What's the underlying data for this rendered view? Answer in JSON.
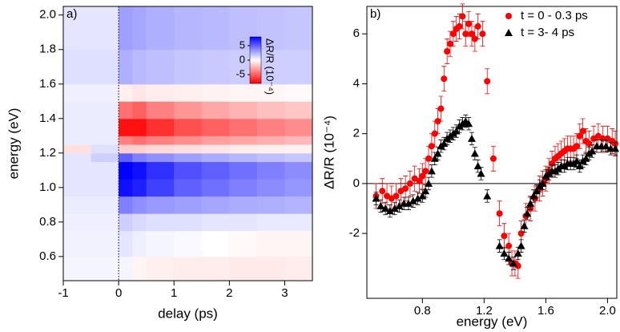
{
  "chart_data": [
    {
      "type": "heatmap",
      "panel_label": "a)",
      "xlabel": "delay (ps)",
      "ylabel": "energy (eV)",
      "xlim": [
        -1.0,
        3.5
      ],
      "ylim": [
        0.46,
        2.05
      ],
      "xticks": [
        -1,
        0,
        1,
        2,
        3
      ],
      "yticks": [
        0.6,
        0.8,
        {
          "value": 1.0,
          "label": "1.0"
        },
        1.2,
        1.4,
        1.6,
        1.8,
        {
          "value": 2.0,
          "label": "2.0"
        }
      ],
      "x_edges": [
        -1.0,
        -0.5,
        0,
        0.25,
        0.5,
        1.0,
        1.5,
        2.0,
        2.5,
        3.0,
        3.5
      ],
      "y_edges": [
        0.46,
        0.6,
        0.75,
        0.85,
        0.95,
        1.05,
        1.15,
        1.2,
        1.25,
        1.3,
        1.4,
        1.5,
        1.6,
        1.8,
        2.05
      ],
      "values": [
        [
          0.3,
          0.3,
          0.3,
          -0.3,
          -0.5,
          -0.6,
          -0.6,
          -0.7,
          -0.7,
          -0.6
        ],
        [
          0.4,
          0.4,
          0.8,
          0.5,
          0.3,
          0.2,
          0,
          -0.2,
          -0.3,
          -0.3
        ],
        [
          0.5,
          0.5,
          1.5,
          1.2,
          1.0,
          1.0,
          0.8,
          0.8,
          0.7,
          0.7
        ],
        [
          0.6,
          0.6,
          4.0,
          3.5,
          3.2,
          3.0,
          2.8,
          2.6,
          2.5,
          2.4
        ],
        [
          0.8,
          0.8,
          7.5,
          7.0,
          6.0,
          5.0,
          4.5,
          4.0,
          3.6,
          3.3
        ],
        [
          0.8,
          0.8,
          8.0,
          7.5,
          6.5,
          5.5,
          5.0,
          4.5,
          4.0,
          3.6
        ],
        [
          0.8,
          1.5,
          5.0,
          4.0,
          3.5,
          3.0,
          2.6,
          2.3,
          2.0,
          1.8
        ],
        [
          -1.0,
          1.0,
          -1.5,
          -1.5,
          -1.2,
          -1.0,
          -0.8,
          -0.6,
          -0.5,
          -0.4
        ],
        [
          0.6,
          0.6,
          -4.0,
          -4.5,
          -4.0,
          -3.5,
          -3.0,
          -2.8,
          -2.5,
          -2.2
        ],
        [
          0.6,
          0.6,
          -7.5,
          -7.5,
          -6.5,
          -5.5,
          -5.0,
          -4.5,
          -4.0,
          -3.6
        ],
        [
          0.6,
          0.6,
          -4.5,
          -5.0,
          -4.0,
          -3.3,
          -2.8,
          -2.4,
          -2.0,
          -1.8
        ],
        [
          0.5,
          0.5,
          -0.5,
          -0.8,
          -0.6,
          -0.5,
          -0.4,
          -0.3,
          -0.3,
          -0.2
        ],
        [
          1.0,
          1.0,
          2.5,
          2.2,
          2.0,
          1.8,
          1.7,
          1.6,
          1.5,
          1.5
        ],
        [
          0.8,
          0.8,
          3.0,
          2.8,
          2.5,
          2.3,
          2.2,
          2.0,
          1.9,
          1.8
        ]
      ],
      "zlim": [
        -8,
        8
      ],
      "zticks": [
        5,
        0,
        -5
      ],
      "colorbar_label": "ΔR/R (10⁻⁴)",
      "colors": {
        "low": "#ff0000",
        "mid": "#ffffff",
        "high": "#0000ff"
      },
      "vline": 0
    },
    {
      "type": "scatter",
      "panel_label": "b)",
      "xlabel": "energy (eV)",
      "ylabel": "ΔR/R (10⁻⁴)",
      "xlim": [
        0.44,
        2.06
      ],
      "ylim": [
        -4.6,
        7.1
      ],
      "xticks": [
        0.8,
        1.2,
        1.6,
        {
          "value": 2.0,
          "label": "2.0"
        }
      ],
      "yticks": [
        -2,
        0,
        2,
        4,
        6
      ],
      "hline": 0,
      "legend": "upper right",
      "series": [
        {
          "name": "t = 0 - 0.3 ps",
          "color": "#ff0000",
          "marker": "circle",
          "x": [
            0.5,
            0.54,
            0.57,
            0.6,
            0.63,
            0.66,
            0.69,
            0.72,
            0.75,
            0.78,
            0.8,
            0.82,
            0.84,
            0.86,
            0.88,
            0.9,
            0.92,
            0.94,
            0.96,
            0.98,
            1.0,
            1.02,
            1.04,
            1.06,
            1.08,
            1.1,
            1.12,
            1.14,
            1.16,
            1.19,
            1.22,
            1.26,
            1.3,
            1.33,
            1.36,
            1.38,
            1.4,
            1.42,
            1.44,
            1.47,
            1.5,
            1.53,
            1.56,
            1.58,
            1.6,
            1.62,
            1.64,
            1.66,
            1.68,
            1.7,
            1.72,
            1.74,
            1.76,
            1.78,
            1.8,
            1.82,
            1.84,
            1.86,
            1.88,
            1.91,
            1.94,
            1.97,
            2.0,
            2.03,
            2.05
          ],
          "values": [
            -0.5,
            -0.3,
            -0.5,
            -0.6,
            -0.5,
            -0.3,
            -0.2,
            0,
            0.2,
            0.1,
            0.3,
            0.5,
            1.0,
            1.5,
            2.0,
            2.5,
            3.0,
            4.2,
            5.3,
            5.6,
            6.0,
            6.2,
            6.3,
            6.7,
            6.0,
            6.4,
            6.0,
            5.8,
            6.3,
            6.0,
            4.1,
            1.0,
            -1.2,
            -2.1,
            -2.5,
            -3.2,
            -3.2,
            -3.3,
            -2.0,
            -1.3,
            -1.0,
            -0.6,
            -0.2,
            0,
            0.2,
            0.5,
            0.8,
            1.0,
            1.1,
            1.2,
            1.3,
            1.4,
            1.4,
            1.4,
            1.5,
            1.9,
            2.1,
            1.7,
            1.6,
            1.8,
            1.9,
            1.8,
            1.8,
            1.7,
            1.6
          ],
          "errors": [
            0.5,
            0.5,
            0.5,
            0.5,
            0.5,
            0.5,
            0.5,
            0.5,
            0.5,
            0.5,
            0.5,
            0.5,
            0.5,
            0.5,
            0.5,
            0.5,
            0.5,
            0.5,
            0.5,
            0.5,
            0.5,
            0.5,
            0.5,
            0.5,
            0.5,
            0.5,
            0.5,
            0.5,
            0.5,
            0.5,
            0.5,
            0.5,
            0.5,
            0.5,
            0.5,
            0.5,
            0.5,
            0.5,
            0.5,
            0.5,
            0.5,
            0.5,
            0.5,
            0.5,
            0.5,
            0.5,
            0.5,
            0.5,
            0.5,
            0.5,
            0.5,
            0.5,
            0.5,
            0.5,
            0.5,
            0.5,
            0.5,
            0.5,
            0.5,
            0.5,
            0.5,
            0.5,
            0.5,
            0.5,
            0.5
          ]
        },
        {
          "name": "t = 3- 4 ps",
          "color": "#000000",
          "marker": "triangle",
          "x": [
            0.5,
            0.53,
            0.56,
            0.59,
            0.62,
            0.65,
            0.68,
            0.71,
            0.74,
            0.77,
            0.8,
            0.82,
            0.84,
            0.86,
            0.88,
            0.9,
            0.92,
            0.94,
            0.96,
            0.98,
            1.0,
            1.02,
            1.04,
            1.06,
            1.08,
            1.1,
            1.12,
            1.14,
            1.16,
            1.18,
            1.22,
            1.3,
            1.33,
            1.36,
            1.39,
            1.42,
            1.44,
            1.46,
            1.48,
            1.5,
            1.52,
            1.54,
            1.56,
            1.58,
            1.6,
            1.62,
            1.64,
            1.66,
            1.68,
            1.7,
            1.72,
            1.74,
            1.76,
            1.78,
            1.8,
            1.82,
            1.84,
            1.86,
            1.88,
            1.9,
            1.93,
            1.96,
            1.99,
            2.02,
            2.05
          ],
          "values": [
            -0.6,
            -0.9,
            -1.0,
            -1.1,
            -1.0,
            -0.9,
            -0.8,
            -0.8,
            -0.7,
            -0.6,
            -0.5,
            -0.3,
            0,
            0.5,
            1.0,
            1.2,
            1.5,
            1.6,
            1.8,
            1.9,
            2.0,
            2.1,
            2.3,
            2.4,
            2.5,
            2.4,
            1.8,
            1.2,
            0.7,
            0.4,
            -0.5,
            -2.5,
            -2.8,
            -3.0,
            -3.2,
            -2.8,
            -2.5,
            -1.7,
            -1.2,
            -0.8,
            -0.5,
            -0.3,
            -0.1,
            0,
            0.3,
            0.4,
            0.5,
            0.5,
            0.6,
            0.7,
            0.7,
            0.8,
            0.8,
            0.8,
            0.9,
            0.7,
            0.9,
            1.0,
            1.2,
            1.3,
            1.5,
            1.5,
            1.5,
            1.4,
            1.4
          ],
          "errors": [
            0.25,
            0.25,
            0.25,
            0.25,
            0.25,
            0.25,
            0.25,
            0.25,
            0.25,
            0.25,
            0.25,
            0.25,
            0.25,
            0.25,
            0.25,
            0.25,
            0.25,
            0.25,
            0.25,
            0.25,
            0.25,
            0.25,
            0.25,
            0.25,
            0.25,
            0.25,
            0.25,
            0.25,
            0.25,
            0.25,
            0.25,
            0.25,
            0.25,
            0.25,
            0.25,
            0.25,
            0.25,
            0.25,
            0.25,
            0.25,
            0.25,
            0.25,
            0.25,
            0.25,
            0.25,
            0.25,
            0.25,
            0.25,
            0.25,
            0.25,
            0.25,
            0.25,
            0.25,
            0.25,
            0.25,
            0.25,
            0.25,
            0.25,
            0.25,
            0.25,
            0.25,
            0.25,
            0.25,
            0.25,
            0.25
          ]
        }
      ]
    }
  ]
}
